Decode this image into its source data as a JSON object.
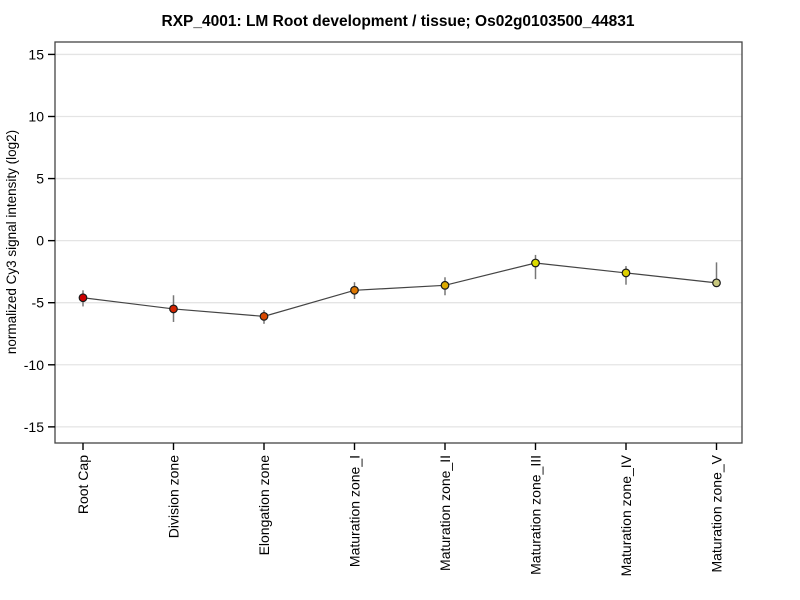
{
  "chart_data": {
    "type": "line",
    "title": "RXP_4001: LM Root development / tissue; Os02g0103500_44831",
    "ylabel": "normalized Cy3 signal intensity (log2)",
    "xlabel": "",
    "categories": [
      "Root Cap",
      "Division zone",
      "Elongation zone",
      "Maturation zone_I",
      "Maturation zone_II",
      "Maturation zone_III",
      "Maturation zone_IV",
      "Maturation zone_V"
    ],
    "values": [
      -4.6,
      -5.5,
      -6.1,
      -4.0,
      -3.6,
      -1.8,
      -2.6,
      -3.4
    ],
    "error_up": [
      0.6,
      1.1,
      0.5,
      0.65,
      0.65,
      0.65,
      0.55,
      1.65
    ],
    "error_down": [
      0.7,
      1.05,
      0.6,
      0.7,
      0.8,
      1.3,
      0.95,
      0.15
    ],
    "point_colors": [
      "#cc0000",
      "#d32300",
      "#d84800",
      "#dd7700",
      "#dcaa00",
      "#dcdc00",
      "#ded000",
      "#c8c87e"
    ],
    "y_ticks": [
      -15,
      -10,
      -5,
      0,
      5,
      10,
      15
    ],
    "ylim": [
      -16.3,
      16.0
    ],
    "grid": true,
    "legend": null,
    "line_color": "#444444",
    "error_bar_color": "#777777",
    "marker_outline_color": "#1a1a1a",
    "gridline_color": "#e4e4e4",
    "frame_color": "#444444",
    "tick_color": "#000000"
  }
}
